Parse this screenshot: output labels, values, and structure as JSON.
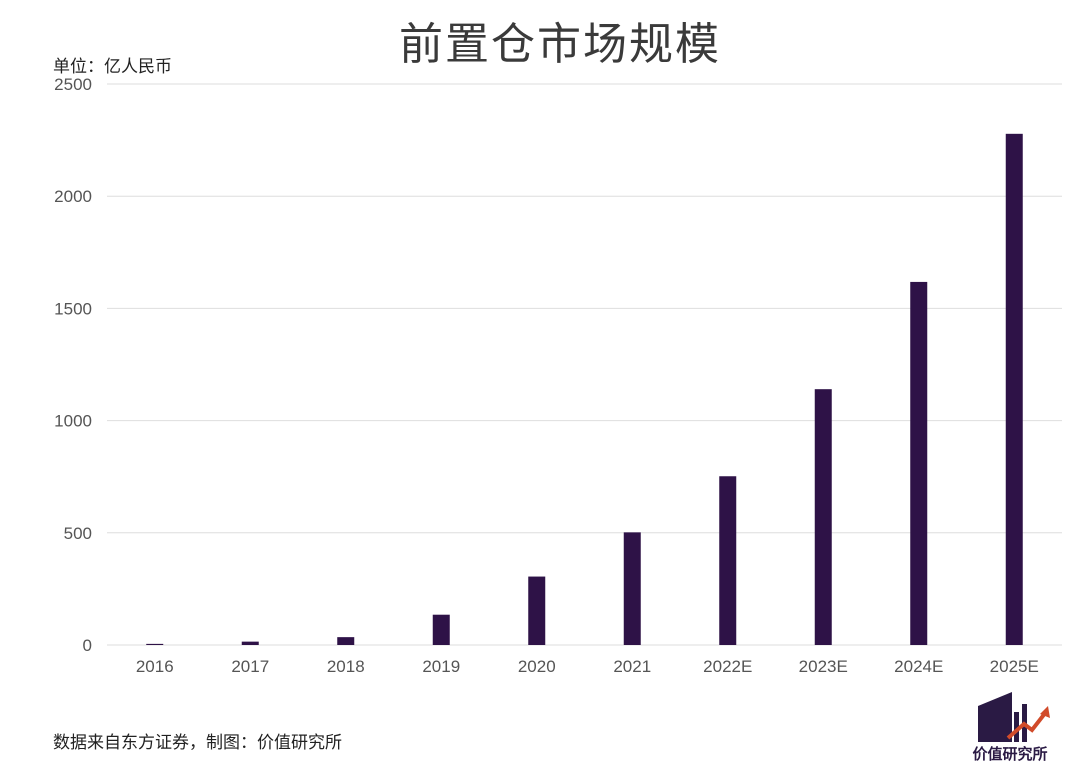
{
  "header": {
    "title": "前置仓市场规模",
    "unit": "单位：亿人民币"
  },
  "footer": {
    "source": "数据来自东方证券，制图：价值研究所"
  },
  "brand": {
    "name": "价值研究所",
    "logo_icon": "building-arrow-logo-icon"
  },
  "colors": {
    "bar": "#2e1247",
    "grid": "#dedede",
    "tick_text": "#555555",
    "logo_dark": "#2a1a44",
    "logo_accent": "#d14b2a"
  },
  "chart_data": {
    "type": "bar",
    "title": "前置仓市场规模",
    "xlabel": "",
    "ylabel": "单位：亿人民币",
    "categories": [
      "2016",
      "2017",
      "2018",
      "2019",
      "2020",
      "2021",
      "2022E",
      "2023E",
      "2024E",
      "2025E"
    ],
    "values": [
      5,
      15,
      35,
      135,
      305,
      502,
      752,
      1140,
      1618,
      2278
    ],
    "ylim": [
      0,
      2500
    ],
    "yticks": [
      0,
      500,
      1000,
      1500,
      2000,
      2500
    ],
    "grid": true,
    "legend": "none"
  }
}
